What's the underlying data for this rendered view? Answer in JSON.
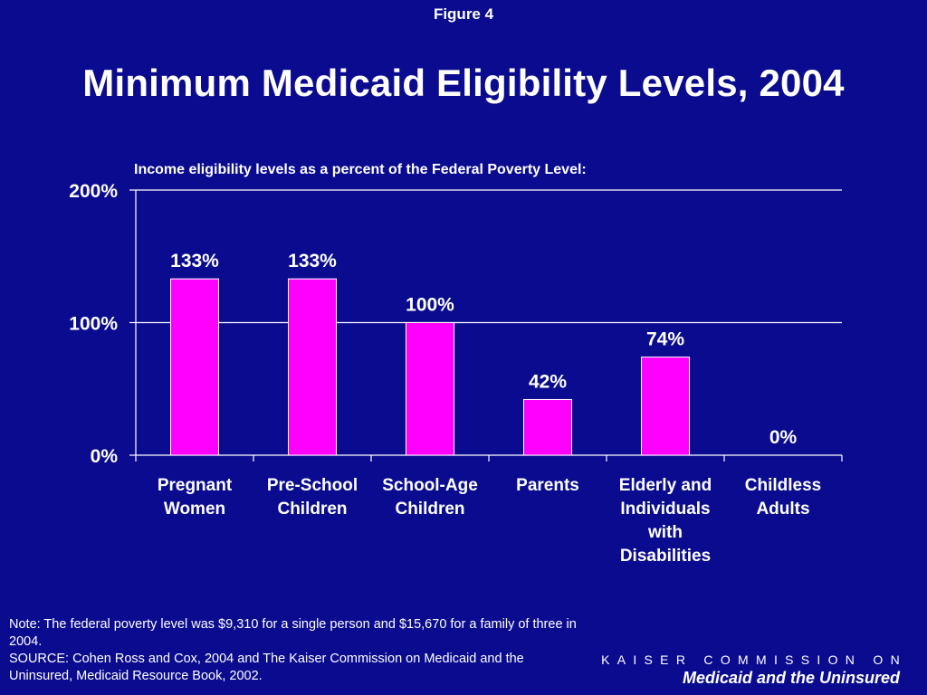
{
  "figure_label": "Figure 4",
  "title": "Minimum Medicaid Eligibility Levels, 2004",
  "subtitle": "Income eligibility levels as a percent of the Federal Poverty Level:",
  "chart_data": {
    "type": "bar",
    "categories": [
      [
        "Pregnant",
        "Women"
      ],
      [
        "Pre-School",
        "Children"
      ],
      [
        "School-Age",
        "Children"
      ],
      [
        "Parents"
      ],
      [
        "Elderly and",
        "Individuals",
        "with",
        "Disabilities"
      ],
      [
        "Childless",
        "Adults"
      ]
    ],
    "values": [
      133,
      133,
      100,
      42,
      74,
      0
    ],
    "data_labels": [
      "133%",
      "133%",
      "100%",
      "42%",
      "74%",
      "0%"
    ],
    "y_ticks": [
      0,
      100,
      200
    ],
    "y_tick_labels": [
      "0%",
      "100%",
      "200%"
    ],
    "ylim": [
      0,
      200
    ],
    "grid": true,
    "bar_color": "#ff00ff",
    "grid_color": "#ffffff"
  },
  "note": {
    "line1": "Note: The federal poverty level was $9,310 for a single person and $15,670 for a family of three in 2004.",
    "line2": "SOURCE: Cohen Ross and Cox, 2004 and The Kaiser Commission on Medicaid and the Uninsured, Medicaid Resource Book, 2002."
  },
  "branding": {
    "top": "KAISER COMMISSION ON",
    "bottom": "Medicaid and the Uninsured"
  }
}
